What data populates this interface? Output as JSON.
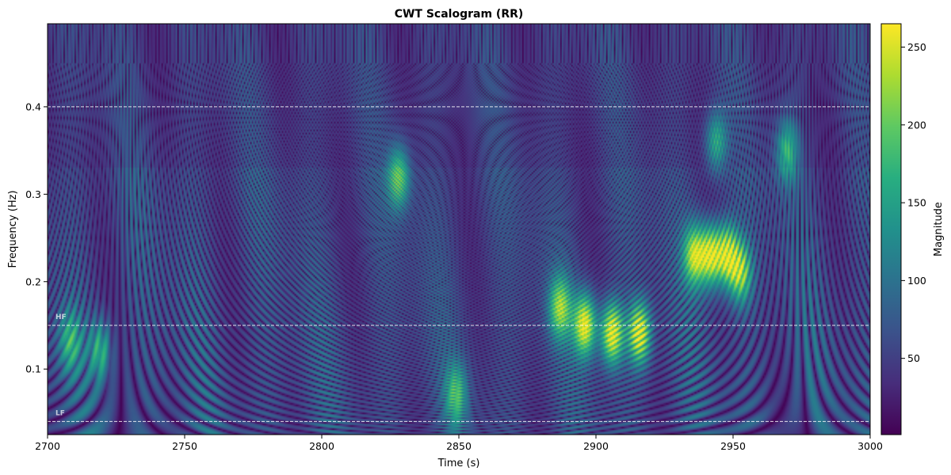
{
  "chart_data": {
    "type": "heatmap",
    "title": "CWT Scalogram (RR)",
    "xlabel": "Time (s)",
    "ylabel": "Frequency (Hz)",
    "xlim": [
      2700,
      3000
    ],
    "ylim": [
      0.025,
      0.495
    ],
    "xticks": [
      2700,
      2750,
      2800,
      2850,
      2900,
      2950,
      3000
    ],
    "yticks": [
      0.1,
      0.2,
      0.3,
      0.4
    ],
    "colormap": "viridis",
    "colorbar": {
      "label": "Magnitude",
      "range": [
        1,
        265
      ],
      "ticks": [
        50,
        100,
        150,
        200,
        250
      ]
    },
    "band_lines": [
      {
        "label": "HF",
        "frequency": 0.15,
        "upper_frequency": 0.4
      },
      {
        "label": "LF",
        "frequency": 0.04
      }
    ],
    "hotspots": [
      {
        "time": 2896,
        "frequency": 0.15,
        "magnitude": 255
      },
      {
        "time": 2906,
        "frequency": 0.14,
        "magnitude": 260
      },
      {
        "time": 2916,
        "frequency": 0.14,
        "magnitude": 245
      },
      {
        "time": 2887,
        "frequency": 0.17,
        "magnitude": 190
      },
      {
        "time": 2936,
        "frequency": 0.23,
        "magnitude": 215
      },
      {
        "time": 2942,
        "frequency": 0.23,
        "magnitude": 235
      },
      {
        "time": 2948,
        "frequency": 0.23,
        "magnitude": 225
      },
      {
        "time": 2953,
        "frequency": 0.21,
        "magnitude": 190
      },
      {
        "time": 2828,
        "frequency": 0.32,
        "magnitude": 170
      },
      {
        "time": 2849,
        "frequency": 0.07,
        "magnitude": 140
      },
      {
        "time": 2719,
        "frequency": 0.12,
        "magnitude": 140
      },
      {
        "time": 2708,
        "frequency": 0.13,
        "magnitude": 130
      },
      {
        "time": 2970,
        "frequency": 0.35,
        "magnitude": 145
      },
      {
        "time": 2944,
        "frequency": 0.36,
        "magnitude": 140
      }
    ]
  }
}
